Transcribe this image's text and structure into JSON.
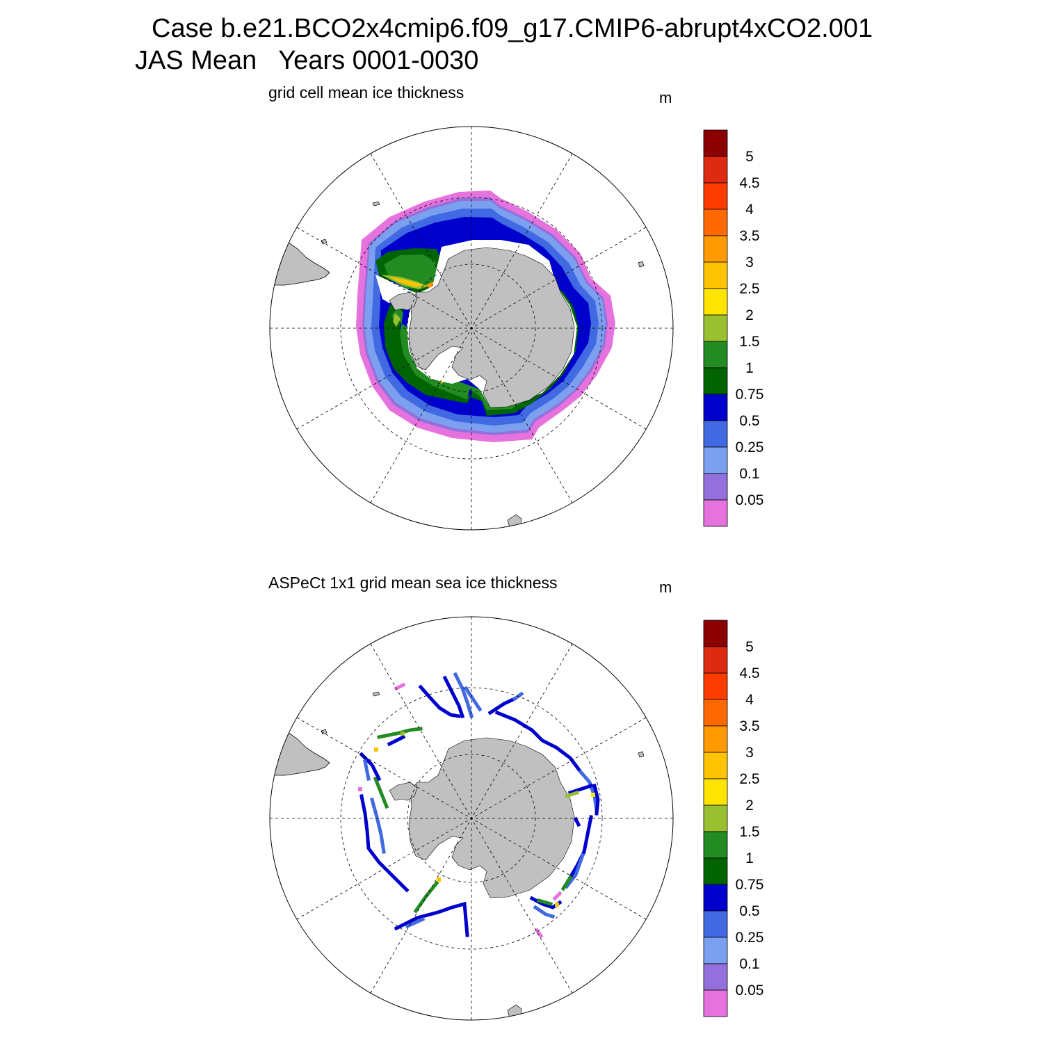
{
  "header": {
    "line1": "Case b.e21.BCO2x4cmip6.f09_g17.CMIP6-abrupt4xCO2.001",
    "line2": "JAS Mean   Years 0001-0030"
  },
  "panels": [
    {
      "id": "model",
      "title": "grid cell mean ice thickness",
      "unit": "m"
    },
    {
      "id": "obs",
      "title": "ASPeCt 1x1 grid mean sea ice thickness",
      "unit": "m"
    }
  ],
  "colorbar": {
    "levels": [
      "5",
      "4.5",
      "4",
      "3.5",
      "3",
      "2.5",
      "2",
      "1.5",
      "1",
      "0.75",
      "0.5",
      "0.25",
      "0.1",
      "0.05"
    ],
    "colors": [
      "#8b0000",
      "#de2a10",
      "#ff3c00",
      "#ff6a00",
      "#ff9a00",
      "#ffc400",
      "#ffe400",
      "#9ac030",
      "#228b22",
      "#006400",
      "#0000cd",
      "#4169e1",
      "#7ba0f0",
      "#9370db",
      "#e673dd"
    ]
  },
  "map_colors": {
    "land": "#c0c0c0",
    "ocean": "#ffffff",
    "grid": "#000000"
  }
}
